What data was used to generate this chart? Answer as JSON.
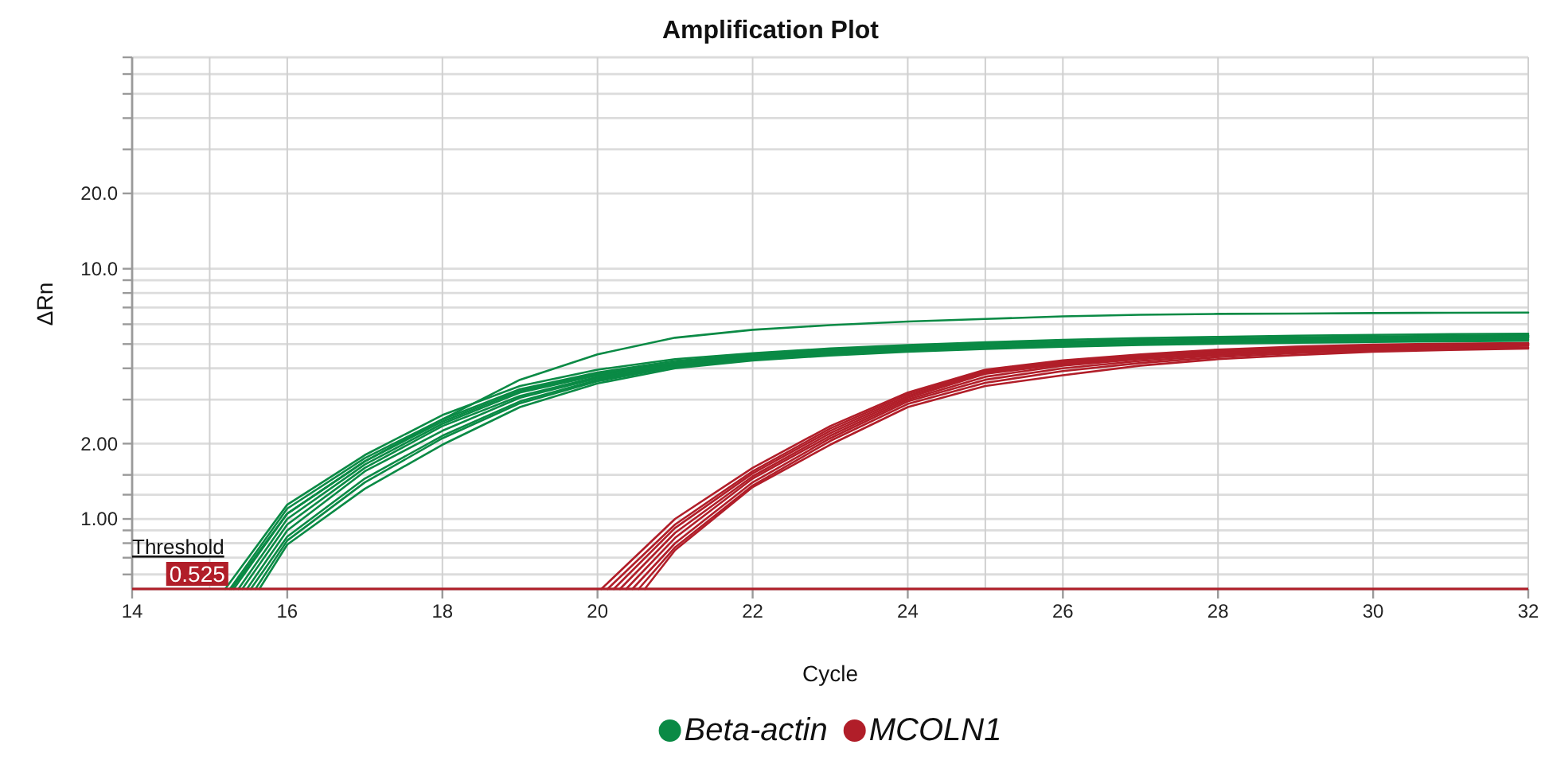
{
  "chart_data": {
    "type": "line",
    "title": "Amplification Plot",
    "xlabel": "Cycle",
    "ylabel": "ΔRn",
    "log": "y",
    "grid": true,
    "legend": "bottom",
    "xlim": [
      14,
      32
    ],
    "xticks": [
      14,
      {
        "value": 15,
        "label": null
      },
      16,
      18,
      20,
      22,
      24,
      {
        "value": 25,
        "label": null
      },
      26,
      28,
      30,
      32
    ],
    "ylim": [
      0.525,
      70
    ],
    "yticks": [
      {
        "value": 0.6,
        "label": null
      },
      {
        "value": 0.7,
        "label": null
      },
      {
        "value": 0.8,
        "label": null
      },
      {
        "value": 0.9,
        "label": null
      },
      {
        "value": 1,
        "label": "1.00"
      },
      {
        "value": 1.25,
        "label": null
      },
      {
        "value": 1.5,
        "label": null
      },
      {
        "value": 2,
        "label": "2.00"
      },
      {
        "value": 3,
        "label": null
      },
      {
        "value": 4,
        "label": null
      },
      {
        "value": 5,
        "label": null
      },
      {
        "value": 6,
        "label": null
      },
      {
        "value": 7,
        "label": null
      },
      {
        "value": 8,
        "label": null
      },
      {
        "value": 9,
        "label": null
      },
      {
        "value": 10,
        "label": "10.0"
      },
      {
        "value": 20,
        "label": "20.0"
      },
      {
        "value": 30,
        "label": null
      },
      {
        "value": 40,
        "label": null
      },
      {
        "value": 50,
        "label": null
      },
      {
        "value": 60,
        "label": null
      },
      {
        "value": 70,
        "label": null
      }
    ],
    "ref_lines": [
      {
        "axis": "y",
        "value": 0.525,
        "label": "Threshold",
        "color": "#b11e29"
      }
    ],
    "annotations": [
      {
        "text": "0.525",
        "x": 15.24,
        "y": 0.525
      }
    ],
    "series": [
      {
        "name": "Beta-actin",
        "color": "#0a8a45",
        "x": [
          15.28,
          16,
          17,
          18,
          19,
          20,
          21,
          22,
          23,
          24,
          25,
          26,
          27,
          28,
          29,
          30,
          31,
          32
        ],
        "values": [
          0.525,
          1.05,
          1.7,
          2.5,
          3.6,
          4.55,
          5.3,
          5.7,
          5.95,
          6.15,
          6.3,
          6.45,
          6.55,
          6.6,
          6.62,
          6.65,
          6.67,
          6.68
        ]
      },
      {
        "color": "#0a8a45",
        "x": [
          15.2,
          16,
          17,
          18,
          19,
          20,
          21,
          22,
          23,
          24,
          25,
          26,
          27,
          28,
          29,
          30,
          31,
          32
        ],
        "values": [
          0.525,
          1.14,
          1.8,
          2.6,
          3.4,
          3.95,
          4.35,
          4.6,
          4.8,
          4.95,
          5.08,
          5.2,
          5.28,
          5.34,
          5.4,
          5.44,
          5.48,
          5.5
        ]
      },
      {
        "color": "#0a8a45",
        "x": [
          15.26,
          16,
          17,
          18,
          19,
          20,
          21,
          22,
          23,
          24,
          25,
          26,
          27,
          28,
          29,
          30,
          31,
          32
        ],
        "values": [
          0.525,
          1.1,
          1.75,
          2.5,
          3.3,
          3.85,
          4.28,
          4.55,
          4.75,
          4.9,
          5.02,
          5.12,
          5.2,
          5.26,
          5.32,
          5.36,
          5.4,
          5.43
        ]
      },
      {
        "color": "#0a8a45",
        "x": [
          15.31,
          16,
          17,
          18,
          19,
          20,
          21,
          22,
          23,
          24,
          25,
          26,
          27,
          28,
          29,
          30,
          31,
          32
        ],
        "values": [
          0.525,
          1.05,
          1.7,
          2.45,
          3.25,
          3.8,
          4.22,
          4.5,
          4.7,
          4.85,
          4.98,
          5.08,
          5.16,
          5.22,
          5.28,
          5.32,
          5.36,
          5.4
        ]
      },
      {
        "color": "#0a8a45",
        "x": [
          15.37,
          16,
          17,
          18,
          19,
          20,
          21,
          22,
          23,
          24,
          25,
          26,
          27,
          28,
          29,
          30,
          31,
          32
        ],
        "values": [
          0.525,
          1.0,
          1.65,
          2.4,
          3.2,
          3.75,
          4.2,
          4.48,
          4.68,
          4.82,
          4.95,
          5.05,
          5.13,
          5.2,
          5.25,
          5.3,
          5.34,
          5.38
        ]
      },
      {
        "color": "#0a8a45",
        "x": [
          15.42,
          16,
          17,
          18,
          19,
          20,
          21,
          22,
          23,
          24,
          25,
          26,
          27,
          28,
          29,
          30,
          31,
          32
        ],
        "values": [
          0.525,
          0.95,
          1.6,
          2.35,
          3.1,
          3.7,
          4.15,
          4.45,
          4.65,
          4.8,
          4.92,
          5.02,
          5.1,
          5.17,
          5.22,
          5.27,
          5.31,
          5.35
        ]
      },
      {
        "color": "#0a8a45",
        "x": [
          15.48,
          16,
          17,
          18,
          19,
          20,
          21,
          22,
          23,
          24,
          25,
          26,
          27,
          28,
          29,
          30,
          31,
          32
        ],
        "values": [
          0.525,
          0.9,
          1.55,
          2.25,
          3.05,
          3.65,
          4.1,
          4.4,
          4.6,
          4.75,
          4.88,
          4.98,
          5.06,
          5.12,
          5.18,
          5.22,
          5.26,
          5.3
        ]
      },
      {
        "color": "#0a8a45",
        "x": [
          15.53,
          16,
          17,
          18,
          19,
          20,
          21,
          22,
          23,
          24,
          25,
          26,
          27,
          28,
          29,
          30,
          31,
          32
        ],
        "values": [
          0.525,
          0.85,
          1.45,
          2.15,
          2.95,
          3.6,
          4.08,
          4.38,
          4.58,
          4.72,
          4.85,
          4.95,
          5.03,
          5.1,
          5.15,
          5.2,
          5.24,
          5.28
        ]
      },
      {
        "color": "#0a8a45",
        "x": [
          15.59,
          16,
          17,
          18,
          19,
          20,
          21,
          22,
          23,
          24,
          25,
          26,
          27,
          28,
          29,
          30,
          31,
          32
        ],
        "values": [
          0.525,
          0.82,
          1.4,
          2.1,
          2.9,
          3.55,
          4.05,
          4.35,
          4.55,
          4.7,
          4.82,
          4.92,
          5.0,
          5.06,
          5.12,
          5.16,
          5.2,
          5.22
        ]
      },
      {
        "color": "#0a8a45",
        "x": [
          15.64,
          16,
          17,
          18,
          19,
          20,
          21,
          22,
          23,
          24,
          25,
          26,
          27,
          28,
          29,
          30,
          31,
          32
        ],
        "values": [
          0.525,
          0.79,
          1.32,
          1.98,
          2.8,
          3.48,
          4.0,
          4.3,
          4.5,
          4.66,
          4.78,
          4.88,
          4.96,
          5.02,
          5.06,
          5.1,
          5.12,
          5.15
        ]
      },
      {
        "name": "MCOLN1",
        "color": "#b11e29",
        "x": [
          20.05,
          21,
          22,
          23,
          24,
          25,
          26,
          27,
          28,
          29,
          30,
          31,
          32
        ],
        "values": [
          0.525,
          1.0,
          1.6,
          2.35,
          3.2,
          3.95,
          4.3,
          4.55,
          4.75,
          4.88,
          4.97,
          5.02,
          5.05
        ]
      },
      {
        "color": "#b11e29",
        "x": [
          20.13,
          21,
          22,
          23,
          24,
          25,
          26,
          27,
          28,
          29,
          30,
          31,
          32
        ],
        "values": [
          0.525,
          0.95,
          1.55,
          2.3,
          3.15,
          3.9,
          4.25,
          4.5,
          4.7,
          4.84,
          4.93,
          4.99,
          5.03
        ]
      },
      {
        "color": "#b11e29",
        "x": [
          20.21,
          21,
          22,
          23,
          24,
          25,
          26,
          27,
          28,
          29,
          30,
          31,
          32
        ],
        "values": [
          0.525,
          0.92,
          1.52,
          2.25,
          3.1,
          3.85,
          4.2,
          4.45,
          4.65,
          4.8,
          4.9,
          4.96,
          5.0
        ]
      },
      {
        "color": "#b11e29",
        "x": [
          20.29,
          21,
          22,
          23,
          24,
          25,
          26,
          27,
          28,
          29,
          30,
          31,
          32
        ],
        "values": [
          0.525,
          0.88,
          1.48,
          2.2,
          3.05,
          3.8,
          4.15,
          4.4,
          4.6,
          4.75,
          4.86,
          4.93,
          4.98
        ]
      },
      {
        "color": "#b11e29",
        "x": [
          20.37,
          21,
          22,
          23,
          24,
          25,
          26,
          27,
          28,
          29,
          30,
          31,
          32
        ],
        "values": [
          0.525,
          0.84,
          1.45,
          2.15,
          3.0,
          3.7,
          4.1,
          4.35,
          4.55,
          4.7,
          4.82,
          4.9,
          4.95
        ]
      },
      {
        "color": "#b11e29",
        "x": [
          20.45,
          21,
          22,
          23,
          24,
          25,
          26,
          27,
          28,
          29,
          30,
          31,
          32
        ],
        "values": [
          0.525,
          0.8,
          1.4,
          2.1,
          2.95,
          3.6,
          4.0,
          4.28,
          4.5,
          4.66,
          4.78,
          4.86,
          4.92
        ]
      },
      {
        "color": "#b11e29",
        "x": [
          20.53,
          21,
          22,
          23,
          24,
          25,
          26,
          27,
          28,
          29,
          30,
          31,
          32
        ],
        "values": [
          0.525,
          0.77,
          1.36,
          2.05,
          2.88,
          3.5,
          3.9,
          4.2,
          4.43,
          4.6,
          4.72,
          4.8,
          4.85
        ]
      },
      {
        "color": "#b11e29",
        "x": [
          20.61,
          21,
          22,
          23,
          24,
          25,
          26,
          27,
          28,
          29,
          30,
          31,
          32
        ],
        "values": [
          0.525,
          0.75,
          1.34,
          1.98,
          2.8,
          3.4,
          3.75,
          4.1,
          4.35,
          4.52,
          4.66,
          4.74,
          4.8
        ]
      }
    ]
  }
}
